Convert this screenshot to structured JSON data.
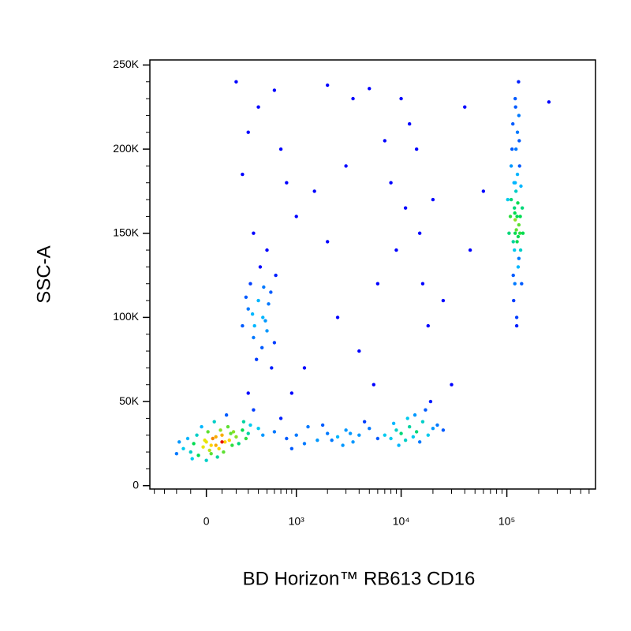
{
  "chart_data": {
    "type": "scatter",
    "xscale": "biexponential",
    "xlabel": "BD Horizon™ RB613 CD16",
    "ylabel": "SSC-A",
    "xlim": [
      -450,
      690000
    ],
    "ylim": [
      -2000,
      253000
    ],
    "xticks": [
      0,
      {
        "value": 1000,
        "label": "10³"
      },
      {
        "value": 10000,
        "label": "10⁴"
      },
      {
        "value": 100000,
        "label": "10⁵"
      }
    ],
    "xminorticks": [
      -400,
      -300,
      -200,
      -100,
      100,
      200,
      300,
      400,
      500,
      600,
      700,
      800,
      900,
      2000,
      3000,
      4000,
      5000,
      6000,
      7000,
      8000,
      9000,
      20000,
      30000,
      40000,
      50000,
      60000,
      70000,
      80000,
      90000,
      200000,
      300000,
      400000,
      500000,
      600000
    ],
    "yticks": [
      0,
      {
        "value": 50000,
        "label": "50K"
      },
      {
        "value": 100000,
        "label": "100K"
      },
      {
        "value": 150000,
        "label": "150K"
      },
      {
        "value": 200000,
        "label": "200K"
      },
      {
        "value": 250000,
        "label": "250K"
      }
    ],
    "yminorticks": [
      10000,
      20000,
      30000,
      40000,
      60000,
      70000,
      80000,
      90000,
      110000,
      120000,
      130000,
      140000,
      160000,
      170000,
      180000,
      190000,
      210000,
      220000,
      230000,
      240000
    ],
    "x": [
      -150,
      -100,
      -80,
      -50,
      -20,
      0,
      20,
      40,
      60,
      80,
      100,
      120,
      150,
      180,
      200,
      250,
      300,
      -200,
      -120,
      -60,
      10,
      30,
      70,
      110,
      140,
      220,
      260,
      320,
      400,
      450,
      -180,
      -30,
      50,
      90,
      130,
      170,
      0,
      -90,
      60,
      160,
      350,
      280,
      -10,
      30,
      100,
      600,
      800,
      1000,
      1300,
      1600,
      2000,
      2500,
      3000,
      3500,
      4000,
      5000,
      6000,
      1200,
      1800,
      2800,
      700,
      900,
      4500,
      2200,
      3300,
      7000,
      8000,
      9000,
      10000,
      11000,
      12000,
      13000,
      14000,
      15000,
      16000,
      18000,
      20000,
      9500,
      11500,
      13500,
      17000,
      19000,
      22000,
      25000,
      8500,
      250,
      300,
      350,
      400,
      450,
      500,
      550,
      600,
      320,
      380,
      420,
      480,
      520,
      360,
      440,
      280,
      560,
      620,
      340,
      460,
      120000,
      125000,
      115000,
      130000,
      110000,
      135000,
      120000,
      128000,
      118000,
      122000,
      132000,
      112000,
      126000,
      138000,
      116000,
      124000,
      130000,
      120000,
      110000,
      140000,
      105000,
      125000,
      130000,
      115000,
      120000,
      127000,
      133000,
      118000,
      122000,
      126000,
      114000,
      136000,
      108000,
      131000,
      119000,
      124000,
      142000,
      102000,
      129000,
      121000,
      117000,
      134000,
      123000,
      119000,
      128000,
      200,
      600,
      2000,
      5000,
      10000,
      12000,
      400,
      300,
      250,
      700,
      1500,
      3000,
      8000,
      20000,
      15000,
      6000,
      9000,
      2500,
      4000,
      25000,
      30000,
      1000,
      1200,
      350,
      500,
      18000,
      7000,
      40000,
      250000,
      60000,
      3500,
      800,
      11000,
      16000,
      5500,
      2000,
      14000,
      45000,
      300,
      900
    ],
    "values": [
      22000,
      20000,
      25000,
      18000,
      23000,
      26000,
      21000,
      28000,
      24000,
      22000,
      30000,
      26000,
      27000,
      32000,
      29000,
      33000,
      31000,
      19000,
      28000,
      30000,
      32000,
      19000,
      17000,
      20000,
      35000,
      25000,
      38000,
      36000,
      34000,
      30000,
      26000,
      35000,
      38000,
      33000,
      42000,
      24000,
      15000,
      16000,
      29000,
      31000,
      45000,
      28000,
      27000,
      24000,
      26000,
      32000,
      28000,
      30000,
      35000,
      27000,
      31000,
      29000,
      33000,
      26000,
      30000,
      34000,
      28000,
      25000,
      36000,
      24000,
      40000,
      22000,
      38000,
      27000,
      31000,
      30000,
      28000,
      33000,
      31000,
      27000,
      35000,
      29000,
      32000,
      26000,
      38000,
      30000,
      34000,
      24000,
      40000,
      42000,
      45000,
      50000,
      36000,
      33000,
      37000,
      95000,
      105000,
      88000,
      110000,
      100000,
      92000,
      115000,
      85000,
      120000,
      75000,
      130000,
      98000,
      108000,
      95000,
      82000,
      112000,
      70000,
      125000,
      102000,
      118000,
      150000,
      160000,
      145000,
      155000,
      170000,
      140000,
      180000,
      130000,
      165000,
      175000,
      190000,
      200000,
      210000,
      120000,
      110000,
      100000,
      220000,
      230000,
      190000,
      165000,
      150000,
      145000,
      135000,
      125000,
      158000,
      168000,
      150000,
      140000,
      200000,
      185000,
      215000,
      178000,
      160000,
      205000,
      120000,
      95000,
      150000,
      170000,
      240000,
      225000,
      180000,
      160000,
      152000,
      162000,
      148000,
      240000,
      235000,
      238000,
      236000,
      230000,
      215000,
      225000,
      210000,
      185000,
      200000,
      175000,
      190000,
      180000,
      170000,
      150000,
      120000,
      140000,
      100000,
      80000,
      110000,
      60000,
      160000,
      70000,
      150000,
      140000,
      95000,
      205000,
      225000,
      228000,
      175000,
      230000,
      180000,
      165000,
      120000,
      60000,
      145000,
      200000,
      140000,
      55000,
      55000
    ]
  }
}
